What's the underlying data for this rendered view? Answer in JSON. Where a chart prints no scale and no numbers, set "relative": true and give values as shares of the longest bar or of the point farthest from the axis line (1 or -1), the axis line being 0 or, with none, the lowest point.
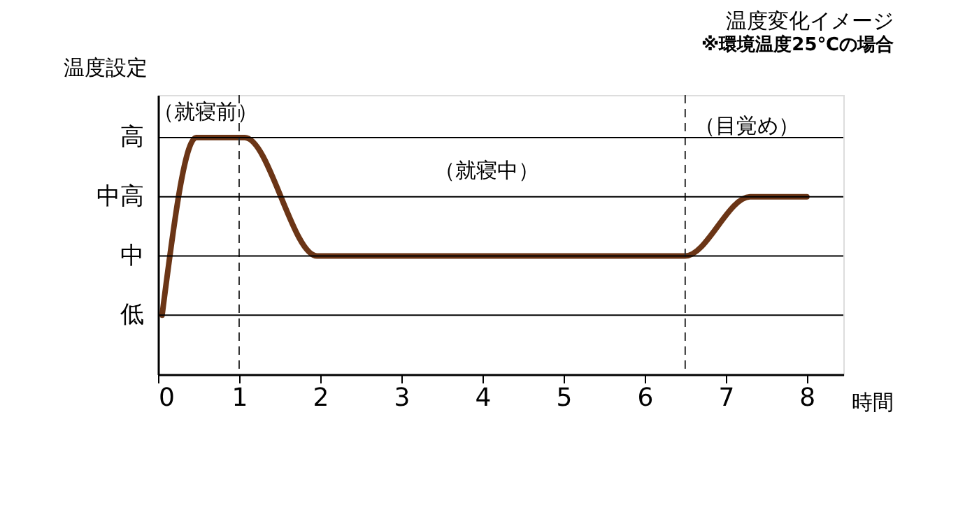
{
  "chart_data": {
    "type": "line",
    "title": "温度変化イメージ",
    "subtitle": "※環境温度25℃の場合",
    "xlabel": "時間",
    "ylabel": "温度設定",
    "x": [
      0.05,
      0.47,
      0.58,
      1.07,
      1.96,
      6.5,
      7.3,
      8
    ],
    "relative": true,
    "series": [
      {
        "color": "#6b3516",
        "values": [
          0.25,
          1,
          1,
          1,
          0.5,
          0.5,
          0.75,
          0.75
        ]
      }
    ],
    "xlim": [
      0,
      8.45
    ],
    "xticks": [
      0,
      1,
      2,
      3,
      4,
      5,
      6,
      7,
      8
    ],
    "grid": "y",
    "marker": "none",
    "line_style": "solid",
    "ref_lines": [
      {
        "axis": "x",
        "value": 1,
        "color": "#333333",
        "line_style": "dashed"
      },
      {
        "axis": "x",
        "value": 6.5,
        "color": "#333333",
        "line_style": "dashed"
      }
    ],
    "annotations": [
      "（就寝前）",
      "（就寝中）",
      "（目覚め）",
      "低",
      "中",
      "中高",
      "高"
    ]
  }
}
